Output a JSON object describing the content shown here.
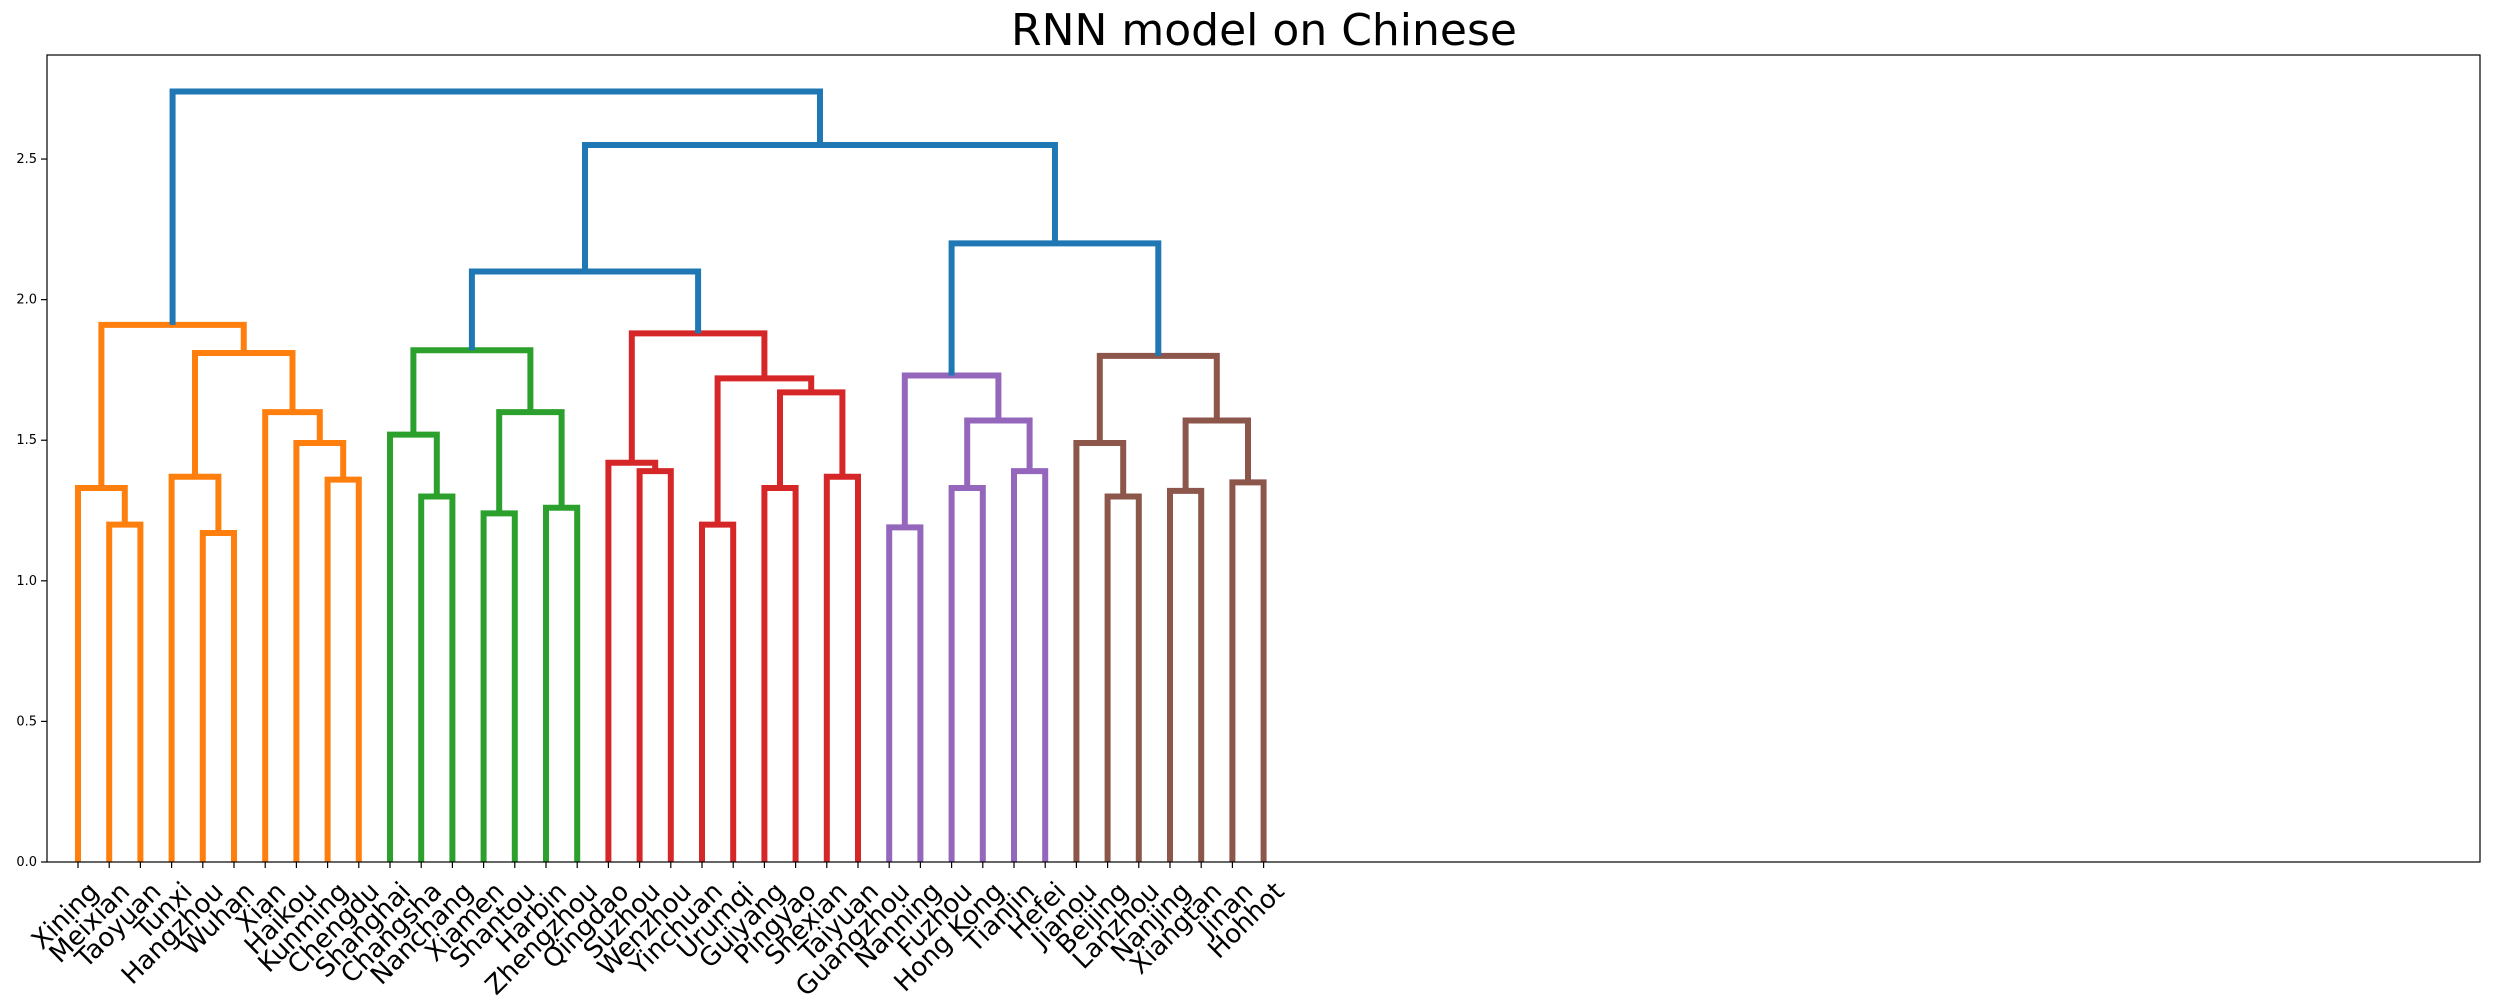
{
  "chart_data": {
    "type": "dendrogram",
    "title": "RNN model on Chinese",
    "xlabel": "",
    "ylabel": "",
    "ylim": [
      0,
      2.87
    ],
    "yticks": [
      "0.0",
      "0.5",
      "1.0",
      "1.5",
      "2.0",
      "2.5"
    ],
    "leaves": [
      "Xining",
      "Meixian",
      "Taoyuan",
      "Tunxi",
      "Hangzhou",
      "Wuhan",
      "Xian",
      "Haikou",
      "Kunming",
      "Chengdu",
      "Shanghai",
      "Changsha",
      "Nanchang",
      "Xiamen",
      "Shantou",
      "Harbin",
      "Zhengzhou",
      "Qingdao",
      "Suzhou",
      "Wenzhou",
      "Yinchuan",
      "Urumqi",
      "Guiyang",
      "Pingyao",
      "Shexian",
      "Taiyuan",
      "Guangzhou",
      "Nanning",
      "Fuzhou",
      "Hong Kong",
      "Tianjin",
      "Hefei",
      "Jianou",
      "Beijing",
      "Lanzhou",
      "Nanjing",
      "Xiangtan",
      "Jinan",
      "Hohhot"
    ],
    "colors": {
      "orange": "#ff7f0e",
      "green": "#2ca02c",
      "red": "#d62728",
      "purple": "#9467bd",
      "brown": "#8c564b",
      "above_threshold": "#1f77b4"
    },
    "links": [
      {
        "a": "Meixian",
        "b": "Taoyuan",
        "height": 1.2,
        "color": "orange"
      },
      {
        "a": "Xining",
        "b": "Meixian+Taoyuan",
        "height": 1.33,
        "color": "orange"
      },
      {
        "a": "Hangzhou",
        "b": "Wuhan",
        "height": 1.17,
        "color": "orange"
      },
      {
        "a": "Tunxi",
        "b": "Hangzhou+Wuhan",
        "height": 1.37,
        "color": "orange"
      },
      {
        "a": "Kunming",
        "b": "Chengdu",
        "height": 1.36,
        "color": "orange"
      },
      {
        "a": "Haikou",
        "b": "Kunming+Chengdu",
        "height": 1.49,
        "color": "orange"
      },
      {
        "a": "Xian",
        "b": "Haikou+Kunming+Chengdu",
        "height": 1.6,
        "color": "orange"
      },
      {
        "a": "Tunxi+Hangzhou+Wuhan",
        "b": "Xian+Haikou+Kunming+Chengdu",
        "height": 1.81,
        "color": "orange"
      },
      {
        "a": "Xining+Meixian+Taoyuan",
        "b": "Tunxi…Chengdu",
        "height": 1.91,
        "color": "orange"
      },
      {
        "a": "Changsha",
        "b": "Nanchang",
        "height": 1.3,
        "color": "green"
      },
      {
        "a": "Shanghai",
        "b": "Changsha+Nanchang",
        "height": 1.52,
        "color": "green"
      },
      {
        "a": "Xiamen",
        "b": "Shantou",
        "height": 1.24,
        "color": "green"
      },
      {
        "a": "Harbin",
        "b": "Zhengzhou",
        "height": 1.26,
        "color": "green"
      },
      {
        "a": "Xiamen+Shantou",
        "b": "Harbin+Zhengzhou",
        "height": 1.6,
        "color": "green"
      },
      {
        "a": "Shanghai+Changsha+Nanchang",
        "b": "Xiamen…Zhengzhou",
        "height": 1.82,
        "color": "green"
      },
      {
        "a": "Suzhou",
        "b": "Wenzhou",
        "height": 1.39,
        "color": "red"
      },
      {
        "a": "Qingdao",
        "b": "Suzhou+Wenzhou",
        "height": 1.42,
        "color": "red"
      },
      {
        "a": "Yinchuan",
        "b": "Urumqi",
        "height": 1.2,
        "color": "red"
      },
      {
        "a": "Guiyang",
        "b": "Pingyao",
        "height": 1.33,
        "color": "red"
      },
      {
        "a": "Shexian",
        "b": "Taiyuan",
        "height": 1.37,
        "color": "red"
      },
      {
        "a": "Guiyang+Pingyao",
        "b": "Shexian+Taiyuan",
        "height": 1.67,
        "color": "red"
      },
      {
        "a": "Yinchuan+Urumqi",
        "b": "Guiyang…Taiyuan",
        "height": 1.72,
        "color": "red"
      },
      {
        "a": "Qingdao+Suzhou+Wenzhou",
        "b": "Yinchuan…Taiyuan",
        "height": 1.88,
        "color": "red"
      },
      {
        "a": "Guangzhou",
        "b": "Nanning",
        "height": 1.19,
        "color": "purple"
      },
      {
        "a": "Fuzhou",
        "b": "Hong Kong",
        "height": 1.33,
        "color": "purple"
      },
      {
        "a": "Tianjin",
        "b": "Hefei",
        "height": 1.39,
        "color": "purple"
      },
      {
        "a": "Fuzhou+Hong Kong",
        "b": "Tianjin+Hefei",
        "height": 1.57,
        "color": "purple"
      },
      {
        "a": "Guangzhou+Nanning",
        "b": "Fuzhou…Hefei",
        "height": 1.73,
        "color": "purple"
      },
      {
        "a": "Beijing",
        "b": "Lanzhou",
        "height": 1.3,
        "color": "brown"
      },
      {
        "a": "Jianou",
        "b": "Beijing+Lanzhou",
        "height": 1.49,
        "color": "brown"
      },
      {
        "a": "Nanjing",
        "b": "Xiangtan",
        "height": 1.32,
        "color": "brown"
      },
      {
        "a": "Jinan",
        "b": "Hohhot",
        "height": 1.35,
        "color": "brown"
      },
      {
        "a": "Nanjing+Xiangtan",
        "b": "Jinan+Hohhot",
        "height": 1.57,
        "color": "brown"
      },
      {
        "a": "Jianou+Beijing+Lanzhou",
        "b": "Nanjing…Hohhot",
        "height": 1.8,
        "color": "brown"
      },
      {
        "a": "Shanghai…Zhengzhou",
        "b": "Qingdao…Taiyuan",
        "height": 2.1,
        "color": "above_threshold"
      },
      {
        "a": "Guangzhou…Hefei",
        "b": "Jianou…Hohhot",
        "height": 2.2,
        "color": "above_threshold"
      },
      {
        "a": "Shanghai…Taiyuan",
        "b": "Guangzhou…Hohhot",
        "height": 2.55,
        "color": "above_threshold"
      },
      {
        "a": "Xining…Chengdu",
        "b": "Shanghai…Hohhot",
        "height": 2.74,
        "color": "above_threshold"
      }
    ]
  }
}
